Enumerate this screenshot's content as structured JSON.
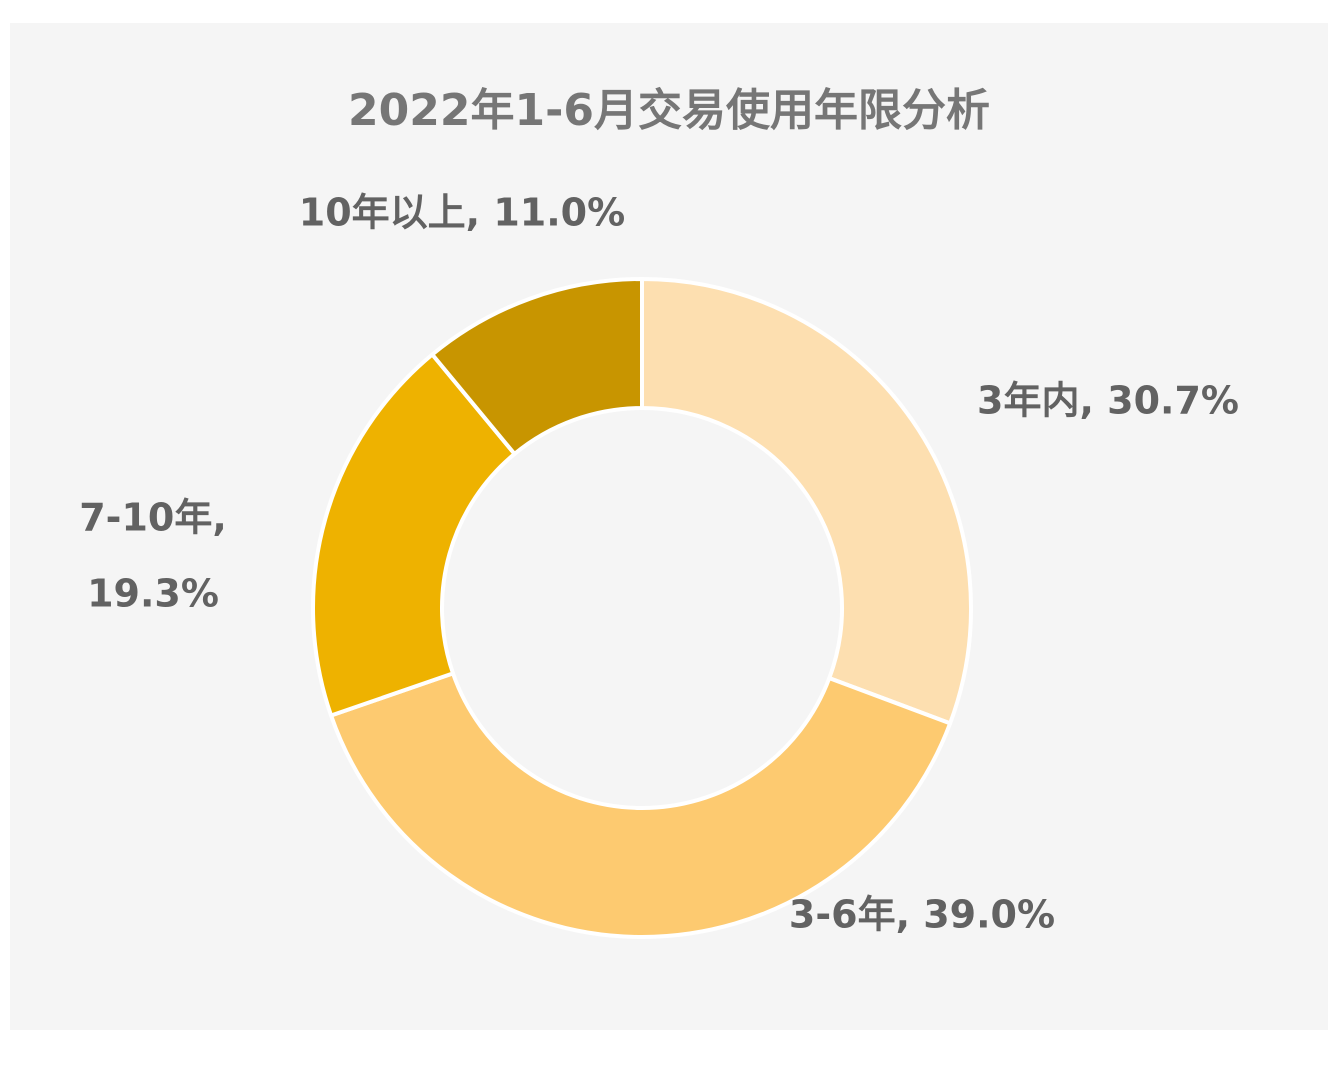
{
  "chart_data": {
    "type": "pie",
    "subtype": "donut",
    "title": "2022年1-6月交易使用年限分析",
    "slices": [
      {
        "label": "3年内",
        "value": 30.7,
        "display": "30.7%",
        "color": "#fddfb0"
      },
      {
        "label": "3-6年",
        "value": 39.0,
        "display": "39.0%",
        "color": "#fdca70"
      },
      {
        "label": "7-10年",
        "value": 19.3,
        "display": "19.3%",
        "color": "#eeb200"
      },
      {
        "label": "10年以上",
        "value": 11.0,
        "display": "11.0%",
        "color": "#c89500"
      }
    ],
    "start_angle_deg": 0,
    "direction": "clockwise",
    "data_labels": true,
    "legend": "none"
  }
}
